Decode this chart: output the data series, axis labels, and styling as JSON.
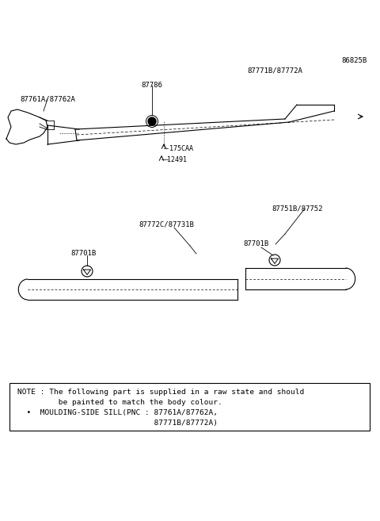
{
  "bg_color": "#ffffff",
  "fig_width": 4.8,
  "fig_height": 6.57,
  "dpi": 100,
  "label_86825B": "86825B",
  "label_87771B": "87771B/87772A",
  "label_87786": "87786",
  "label_87761A": "87761A/87762A",
  "label_175CAA": "175CAA",
  "label_12491": "12491",
  "label_87751B": "87751B/87752",
  "label_87772C": "87772C/87731B",
  "label_87701B_L": "87701B",
  "label_87701B_R": "87701B",
  "note_line1": "NOTE : The following part is supplied in a raw state and should",
  "note_line2": "         be painted to match the body colour.",
  "note_line3": "  •  MOULDING-SIDE SILL(PNC : 87761A/87762A,",
  "note_line4": "                              87771B/87772A)"
}
